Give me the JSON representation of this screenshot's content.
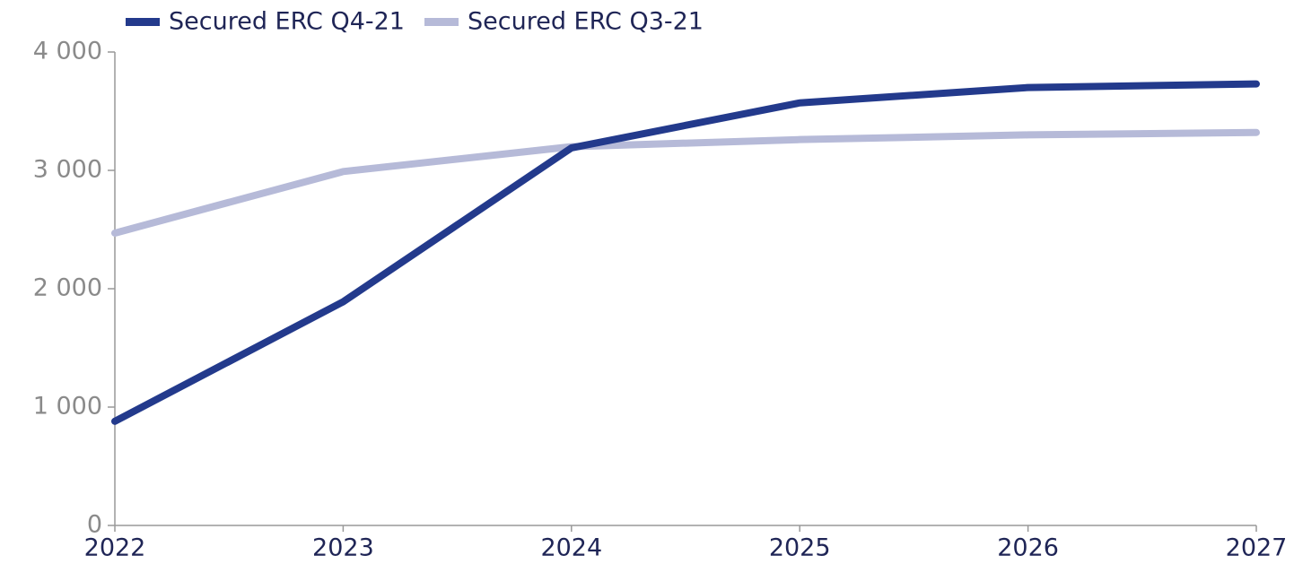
{
  "chart_data": {
    "type": "line",
    "categories": [
      "2022",
      "2023",
      "2024",
      "2025",
      "2026",
      "2027"
    ],
    "series": [
      {
        "name": "Secured ERC Q4-21",
        "color": "#233a8c",
        "values": [
          880,
          1890,
          3190,
          3570,
          3700,
          3730
        ]
      },
      {
        "name": "Secured ERC Q3-21",
        "color": "#b6bad8",
        "values": [
          2470,
          2990,
          3200,
          3260,
          3300,
          3320
        ]
      }
    ],
    "ylim": [
      0,
      4000
    ],
    "yticks": [
      0,
      {
        "value": 1000,
        "label": "1 000"
      },
      {
        "value": 2000,
        "label": "2 000"
      },
      {
        "value": 3000,
        "label": "3 000"
      },
      {
        "value": 4000,
        "label": "4 000"
      }
    ],
    "grid": false,
    "legend": "top"
  }
}
